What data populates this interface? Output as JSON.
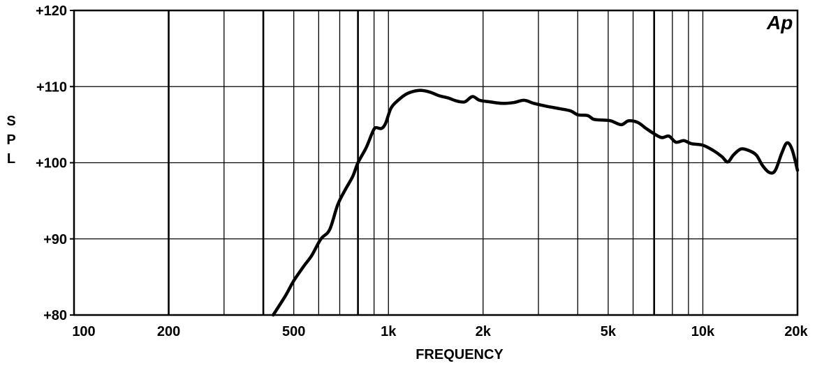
{
  "logo": "Ap",
  "chart_data": {
    "type": "line",
    "title": "",
    "xlabel": "FREQUENCY",
    "ylabel": "SPL",
    "xscale": "log",
    "xlim": [
      100,
      20000
    ],
    "ylim": [
      80,
      120
    ],
    "grid": true,
    "legend": "none",
    "line_color": "#000000",
    "x_ticks": [
      {
        "value": 100,
        "label": "100"
      },
      {
        "value": 200,
        "label": "200"
      },
      {
        "value": 500,
        "label": "500"
      },
      {
        "value": 1000,
        "label": "1k"
      },
      {
        "value": 2000,
        "label": "2k"
      },
      {
        "value": 5000,
        "label": "5k"
      },
      {
        "value": 10000,
        "label": "10k"
      },
      {
        "value": 20000,
        "label": "20k"
      }
    ],
    "x_grid": [
      200,
      300,
      400,
      500,
      600,
      700,
      800,
      900,
      1000,
      2000,
      3000,
      4000,
      5000,
      6000,
      7000,
      8000,
      9000,
      10000
    ],
    "x_grid_bold": [
      200,
      400,
      800,
      7000
    ],
    "y_ticks": [
      {
        "value": 80,
        "label": "+80"
      },
      {
        "value": 90,
        "label": "+90"
      },
      {
        "value": 100,
        "label": "+100"
      },
      {
        "value": 110,
        "label": "+110"
      },
      {
        "value": 120,
        "label": "+120"
      }
    ],
    "y_grid": [
      90,
      100,
      110
    ],
    "series": [
      {
        "values": [
          [
            430,
            80.0
          ],
          [
            470,
            82.5
          ],
          [
            500,
            84.5
          ],
          [
            540,
            86.5
          ],
          [
            570,
            87.8
          ],
          [
            610,
            90.0
          ],
          [
            650,
            91.2
          ],
          [
            690,
            94.5
          ],
          [
            730,
            96.5
          ],
          [
            770,
            98.2
          ],
          [
            800,
            100.0
          ],
          [
            850,
            102.0
          ],
          [
            890,
            104.0
          ],
          [
            910,
            104.6
          ],
          [
            950,
            104.5
          ],
          [
            980,
            105.2
          ],
          [
            1020,
            107.2
          ],
          [
            1080,
            108.3
          ],
          [
            1150,
            109.1
          ],
          [
            1250,
            109.5
          ],
          [
            1350,
            109.3
          ],
          [
            1450,
            108.8
          ],
          [
            1550,
            108.5
          ],
          [
            1650,
            108.1
          ],
          [
            1750,
            108.0
          ],
          [
            1850,
            108.7
          ],
          [
            1950,
            108.2
          ],
          [
            2100,
            108.0
          ],
          [
            2300,
            107.8
          ],
          [
            2500,
            107.9
          ],
          [
            2700,
            108.2
          ],
          [
            2900,
            107.8
          ],
          [
            3200,
            107.4
          ],
          [
            3500,
            107.1
          ],
          [
            3800,
            106.8
          ],
          [
            4000,
            106.3
          ],
          [
            4300,
            106.2
          ],
          [
            4500,
            105.7
          ],
          [
            4800,
            105.6
          ],
          [
            5100,
            105.5
          ],
          [
            5500,
            105.0
          ],
          [
            5800,
            105.5
          ],
          [
            6200,
            105.3
          ],
          [
            6600,
            104.5
          ],
          [
            7000,
            103.8
          ],
          [
            7400,
            103.3
          ],
          [
            7800,
            103.5
          ],
          [
            8200,
            102.7
          ],
          [
            8700,
            102.9
          ],
          [
            9200,
            102.5
          ],
          [
            10000,
            102.3
          ],
          [
            10800,
            101.6
          ],
          [
            11500,
            100.8
          ],
          [
            12000,
            100.1
          ],
          [
            12500,
            101.0
          ],
          [
            13200,
            101.8
          ],
          [
            14000,
            101.6
          ],
          [
            14800,
            101.0
          ],
          [
            15500,
            99.6
          ],
          [
            16300,
            98.7
          ],
          [
            17000,
            99.0
          ],
          [
            17800,
            101.2
          ],
          [
            18500,
            102.6
          ],
          [
            19200,
            101.8
          ],
          [
            20000,
            99.0
          ]
        ]
      }
    ]
  }
}
